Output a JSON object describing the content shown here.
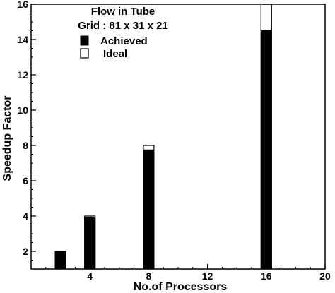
{
  "chart_data": {
    "type": "bar",
    "title": "Flow in Tube",
    "subtitle": "Grid : 81 x 31 x 21",
    "xlabel": "No.of Processors",
    "ylabel": "Speedup Factor",
    "xlim": [
      0,
      20
    ],
    "ylim": [
      1,
      16
    ],
    "xticks": [
      4,
      8,
      12,
      16,
      20
    ],
    "yticks": [
      2,
      4,
      6,
      8,
      10,
      12,
      14,
      16
    ],
    "x": [
      2,
      4,
      8,
      16
    ],
    "series": [
      {
        "name": "Achieved",
        "values": [
          2.0,
          3.9,
          7.75,
          14.5
        ],
        "color": "#000000"
      },
      {
        "name": "Ideal",
        "values": [
          2,
          4,
          8,
          16
        ],
        "color": "#ffffff"
      }
    ],
    "legend_position": "top-left",
    "grid": false
  }
}
